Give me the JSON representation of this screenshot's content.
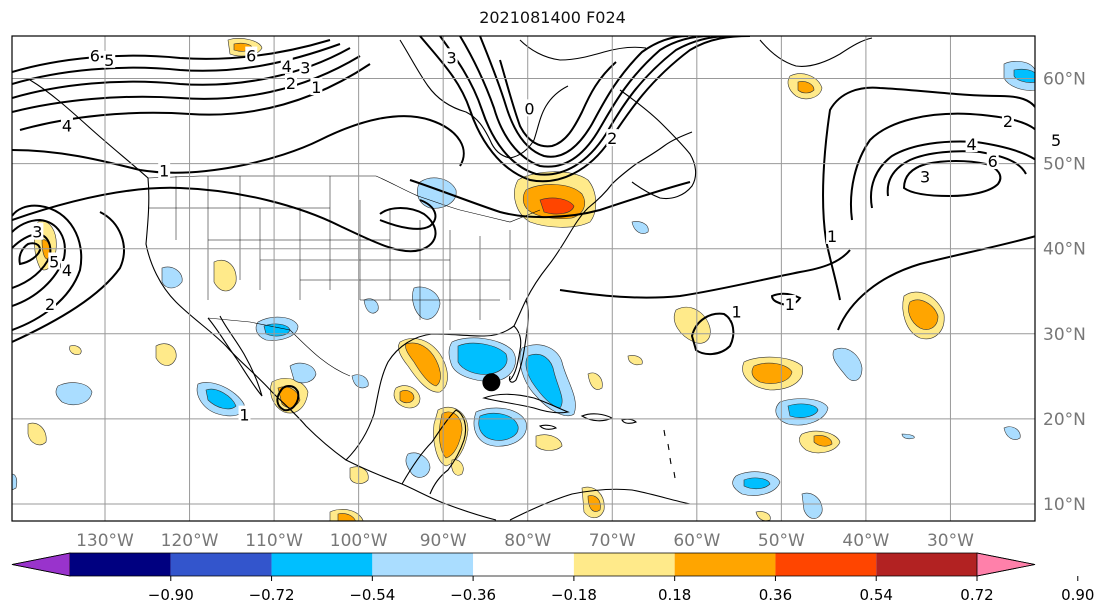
{
  "title": "2021081400 F024",
  "map": {
    "lon_range": [
      -141,
      -20
    ],
    "lat_range": [
      8,
      65
    ],
    "lon_ticks": [
      {
        "value": -130,
        "label": "130°W"
      },
      {
        "value": -120,
        "label": "120°W"
      },
      {
        "value": -110,
        "label": "110°W"
      },
      {
        "value": -100,
        "label": "100°W"
      },
      {
        "value": -90,
        "label": "90°W"
      },
      {
        "value": -80,
        "label": "80°W"
      },
      {
        "value": -70,
        "label": "70°W"
      },
      {
        "value": -60,
        "label": "60°W"
      },
      {
        "value": -50,
        "label": "50°W"
      },
      {
        "value": -40,
        "label": "40°W"
      },
      {
        "value": -30,
        "label": "30°W"
      }
    ],
    "lat_ticks": [
      {
        "value": 60,
        "label": "60°N"
      },
      {
        "value": 50,
        "label": "50°N"
      },
      {
        "value": 40,
        "label": "40°N"
      },
      {
        "value": 30,
        "label": "30°N"
      },
      {
        "value": 20,
        "label": "20°N"
      },
      {
        "value": 10,
        "label": "10°N"
      }
    ],
    "gridlines": true,
    "marker": {
      "lon": -84.3,
      "lat": 24.3,
      "color": "#000000"
    },
    "contour_labels": [
      {
        "text": "6",
        "lon": -131.2,
        "lat": 62.7
      },
      {
        "text": "5",
        "lon": -129.5,
        "lat": 62.2
      },
      {
        "text": "6",
        "lon": -112.7,
        "lat": 62.7
      },
      {
        "text": "4",
        "lon": -108.5,
        "lat": 61.5
      },
      {
        "text": "3",
        "lon": -106.3,
        "lat": 61.3
      },
      {
        "text": "2",
        "lon": -108.0,
        "lat": 59.5
      },
      {
        "text": "1",
        "lon": -105.0,
        "lat": 59.0
      },
      {
        "text": "1",
        "lon": -123.0,
        "lat": 49.2
      },
      {
        "text": "4",
        "lon": -134.5,
        "lat": 54.5
      },
      {
        "text": "3",
        "lon": -138.0,
        "lat": 42.0
      },
      {
        "text": "5",
        "lon": -136.0,
        "lat": 38.5
      },
      {
        "text": "4",
        "lon": -134.5,
        "lat": 37.5
      },
      {
        "text": "2",
        "lon": -136.5,
        "lat": 33.5
      },
      {
        "text": "3",
        "lon": -89.0,
        "lat": 62.5
      },
      {
        "text": "0",
        "lon": -79.8,
        "lat": 56.5
      },
      {
        "text": "1",
        "lon": -113.5,
        "lat": 20.5
      },
      {
        "text": "2",
        "lon": -70.0,
        "lat": 53.0
      },
      {
        "text": "1",
        "lon": -49.0,
        "lat": 33.5
      },
      {
        "text": "1",
        "lon": -55.3,
        "lat": 32.6
      },
      {
        "text": "3",
        "lon": -33.0,
        "lat": 48.5
      },
      {
        "text": "4",
        "lon": -27.5,
        "lat": 52.3
      },
      {
        "text": "6",
        "lon": -25.0,
        "lat": 50.3
      },
      {
        "text": "2",
        "lon": -23.2,
        "lat": 55.0
      },
      {
        "text": "5",
        "lon": -17.5,
        "lat": 52.8
      },
      {
        "text": "1",
        "lon": -44.0,
        "lat": 41.5
      }
    ]
  },
  "colorbar": {
    "ticks": [
      "−0.90",
      "−0.72",
      "−0.54",
      "−0.36",
      "−0.18",
      "0.18",
      "0.36",
      "0.54",
      "0.72",
      "0.90"
    ],
    "colors": [
      "#9933cc",
      "#000080",
      "#3355cc",
      "#00bfff",
      "#aaddff",
      "#ffffff",
      "#ffea8a",
      "#ffa500",
      "#ff4500",
      "#b22222",
      "#ff80aa"
    ]
  }
}
